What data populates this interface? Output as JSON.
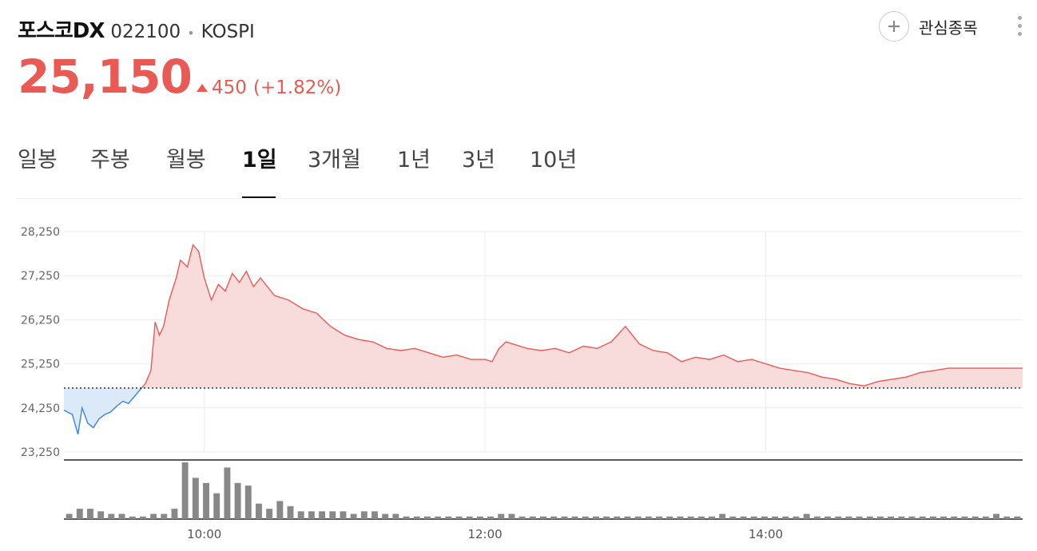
{
  "header": {
    "name": "포스코DX",
    "code": "022100",
    "separator": "•",
    "market": "KOSPI",
    "watch_label": "관심종목"
  },
  "quote": {
    "price": "25,150",
    "change": "450",
    "change_pct": "(+1.82%)",
    "direction": "up"
  },
  "tabs": [
    "일봉",
    "주봉",
    "월봉",
    "1일",
    "3개월",
    "1년",
    "3년",
    "10년"
  ],
  "active_tab": "1일",
  "colors": {
    "up": "#ea5a54",
    "up_fill": "#f8dcdc",
    "down": "#3b84e0",
    "down_fill": "#dbe9f9",
    "volume": "#888888"
  },
  "chart_data": {
    "type": "line",
    "ylim": [
      23250,
      28250
    ],
    "yticks": [
      23250,
      24250,
      25250,
      26250,
      27250,
      28250
    ],
    "ytick_labels": [
      "23,250",
      "24,250",
      "25,250",
      "26,250",
      "27,250",
      "28,250"
    ],
    "xticks": [
      10,
      12,
      14
    ],
    "xtick_labels": [
      "10:00",
      "12:00",
      "14:00"
    ],
    "xlim": [
      9.0,
      15.83
    ],
    "reference_price": 24700,
    "reference_style": "dotted",
    "grid": true,
    "series": [
      {
        "values_x": [
          9.0,
          9.06,
          9.1,
          9.13,
          9.17,
          9.21,
          9.25,
          9.29,
          9.33,
          9.38,
          9.42,
          9.46,
          9.5,
          9.54,
          9.58,
          9.6,
          9.62,
          9.65,
          9.68,
          9.71,
          9.75,
          9.8,
          9.83,
          9.88,
          9.92,
          9.96,
          10.0,
          10.05,
          10.1,
          10.15,
          10.2,
          10.25,
          10.3,
          10.35,
          10.4,
          10.5,
          10.6,
          10.7,
          10.8,
          10.9,
          11.0,
          11.1,
          11.2,
          11.3,
          11.4,
          11.5,
          11.6,
          11.7,
          11.8,
          11.9,
          12.0,
          12.05,
          12.1,
          12.15,
          12.2,
          12.3,
          12.4,
          12.5,
          12.6,
          12.7,
          12.8,
          12.9,
          13.0,
          13.1,
          13.2,
          13.3,
          13.4,
          13.5,
          13.6,
          13.7,
          13.8,
          13.9,
          14.0,
          14.1,
          14.2,
          14.3,
          14.4,
          14.5,
          14.6,
          14.7,
          14.8,
          14.9,
          15.0,
          15.1,
          15.2,
          15.3,
          15.4,
          15.5,
          15.6,
          15.7,
          15.83
        ],
        "values": [
          24200,
          24100,
          23650,
          24250,
          23900,
          23800,
          24000,
          24100,
          24150,
          24300,
          24400,
          24350,
          24500,
          24650,
          24800,
          24950,
          25100,
          26200,
          25900,
          26100,
          26700,
          27200,
          27600,
          27450,
          27950,
          27800,
          27200,
          26700,
          27050,
          26900,
          27300,
          27100,
          27350,
          27000,
          27200,
          26800,
          26700,
          26500,
          26400,
          26100,
          25900,
          25800,
          25750,
          25600,
          25550,
          25600,
          25500,
          25400,
          25450,
          25350,
          25350,
          25300,
          25600,
          25750,
          25700,
          25600,
          25550,
          25600,
          25500,
          25650,
          25600,
          25750,
          26100,
          25700,
          25550,
          25500,
          25300,
          25400,
          25350,
          25450,
          25300,
          25350,
          25250,
          25150,
          25100,
          25050,
          24950,
          24900,
          24800,
          24750,
          24850,
          24900,
          24950,
          25050,
          25100,
          25150,
          25150,
          25150,
          25150,
          25150,
          25150
        ]
      }
    ],
    "volume": {
      "values": [
        2,
        4,
        4,
        3,
        2,
        2,
        1,
        1,
        2,
        2,
        4,
        22,
        16,
        14,
        10,
        20,
        14,
        13,
        6,
        4,
        7,
        5,
        3,
        3,
        3,
        3,
        3,
        2,
        3,
        3,
        2,
        2,
        1,
        1,
        1,
        1,
        1,
        1,
        1,
        1,
        1,
        2,
        2,
        1,
        1,
        1,
        1,
        1,
        1,
        1,
        1,
        1,
        1,
        1,
        1,
        1,
        1,
        1,
        1,
        1,
        1,
        1,
        2,
        1,
        1,
        1,
        1,
        1,
        1,
        1,
        2,
        1,
        1,
        1,
        1,
        1,
        1,
        1,
        1,
        1,
        1,
        1,
        1,
        1,
        1,
        1,
        1,
        1,
        2,
        1,
        1
      ]
    }
  }
}
